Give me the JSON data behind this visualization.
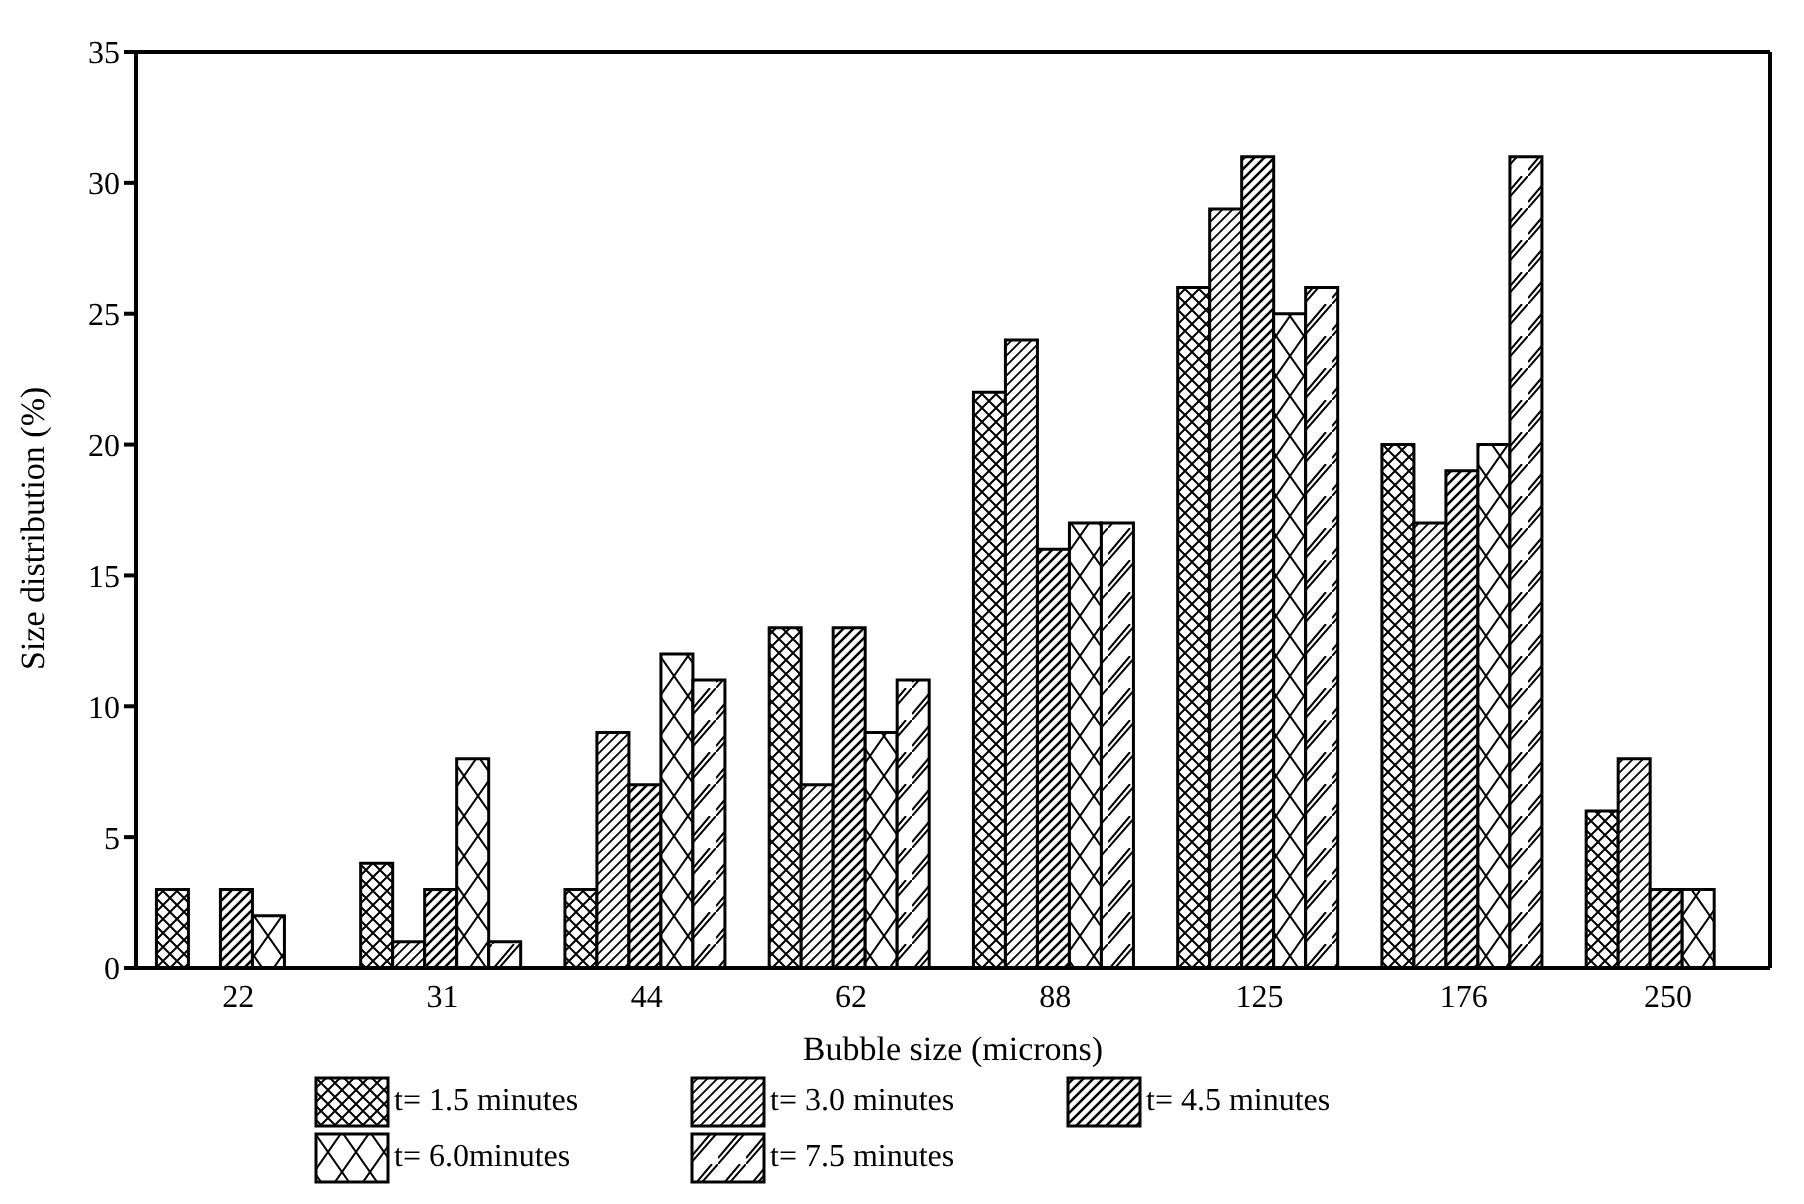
{
  "chart_data": {
    "type": "bar",
    "xlabel": "Bubble size (microns)",
    "ylabel": "Size distribution (%)",
    "categories": [
      "22",
      "31",
      "44",
      "62",
      "88",
      "125",
      "176",
      "250"
    ],
    "series": [
      {
        "name": "t= 1.5 minutes",
        "color": "#000000",
        "values": [
          3,
          4,
          3,
          13,
          22,
          26,
          20,
          6
        ]
      },
      {
        "name": "t= 3.0 minutes",
        "color": "#000000",
        "values": [
          0,
          1,
          9,
          7,
          24,
          29,
          17,
          8
        ]
      },
      {
        "name": "t= 4.5 minutes",
        "color": "#000000",
        "values": [
          3,
          3,
          7,
          13,
          16,
          31,
          19,
          3
        ]
      },
      {
        "name": "t= 6.0minutes",
        "color": "#000000",
        "values": [
          2,
          8,
          12,
          9,
          17,
          25,
          20,
          3
        ]
      },
      {
        "name": "t= 7.5 minutes",
        "color": "#000000",
        "values": [
          0,
          1,
          11,
          11,
          17,
          26,
          31,
          0
        ]
      }
    ],
    "ylim": [
      0,
      35
    ],
    "yticks": [
      0,
      5,
      10,
      15,
      20,
      25,
      30,
      35
    ],
    "legend": "bottom"
  }
}
